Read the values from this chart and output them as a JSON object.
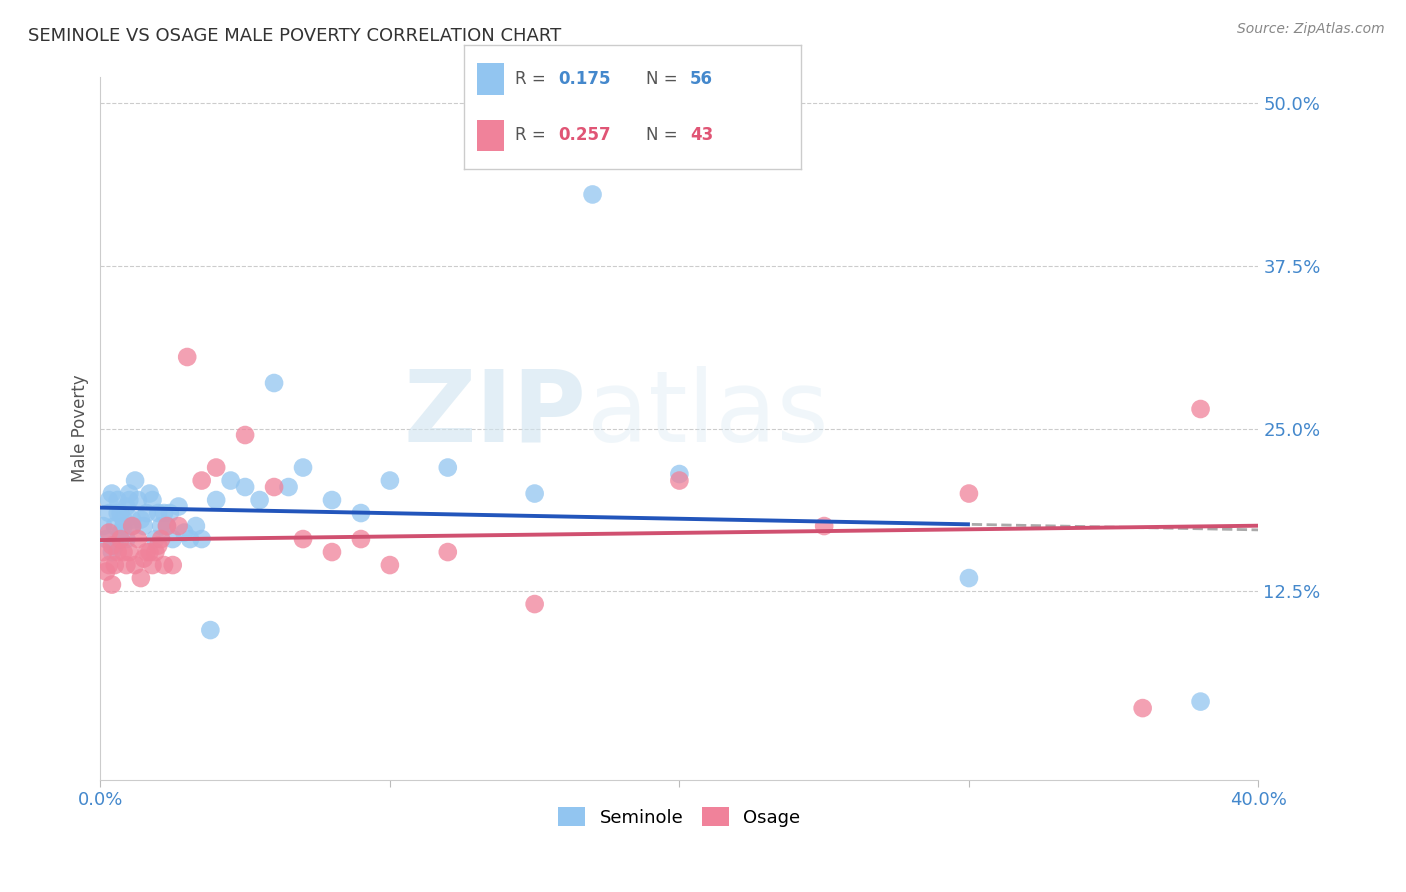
{
  "title": "SEMINOLE VS OSAGE MALE POVERTY CORRELATION CHART",
  "source": "Source: ZipAtlas.com",
  "ylabel": "Male Poverty",
  "xlim": [
    0.0,
    0.4
  ],
  "ylim": [
    -0.02,
    0.52
  ],
  "ytick_positions": [
    0.125,
    0.25,
    0.375,
    0.5
  ],
  "ytick_labels": [
    "12.5%",
    "25.0%",
    "37.5%",
    "50.0%"
  ],
  "xtick_positions": [
    0.0,
    0.1,
    0.2,
    0.3,
    0.4
  ],
  "xtick_labels_show": [
    "0.0%",
    "",
    "",
    "",
    "40.0%"
  ],
  "seminole_color": "#92c5f0",
  "osage_color": "#f0829a",
  "trend_blue": "#2255bb",
  "trend_pink": "#d05070",
  "R_seminole": 0.175,
  "N_seminole": 56,
  "R_osage": 0.257,
  "N_osage": 43,
  "seminole_x": [
    0.001,
    0.002,
    0.003,
    0.003,
    0.004,
    0.004,
    0.005,
    0.005,
    0.006,
    0.006,
    0.007,
    0.007,
    0.008,
    0.008,
    0.009,
    0.009,
    0.01,
    0.01,
    0.011,
    0.011,
    0.012,
    0.013,
    0.014,
    0.015,
    0.016,
    0.017,
    0.018,
    0.019,
    0.02,
    0.021,
    0.022,
    0.023,
    0.024,
    0.025,
    0.027,
    0.029,
    0.031,
    0.033,
    0.035,
    0.038,
    0.04,
    0.045,
    0.05,
    0.055,
    0.06,
    0.065,
    0.07,
    0.08,
    0.09,
    0.1,
    0.12,
    0.15,
    0.17,
    0.2,
    0.3,
    0.38
  ],
  "seminole_y": [
    0.175,
    0.165,
    0.185,
    0.195,
    0.155,
    0.2,
    0.16,
    0.175,
    0.185,
    0.195,
    0.17,
    0.185,
    0.175,
    0.18,
    0.165,
    0.19,
    0.195,
    0.2,
    0.175,
    0.18,
    0.21,
    0.195,
    0.18,
    0.175,
    0.185,
    0.2,
    0.195,
    0.165,
    0.185,
    0.175,
    0.185,
    0.175,
    0.185,
    0.165,
    0.19,
    0.17,
    0.165,
    0.175,
    0.165,
    0.095,
    0.195,
    0.21,
    0.205,
    0.195,
    0.285,
    0.205,
    0.22,
    0.195,
    0.185,
    0.21,
    0.22,
    0.2,
    0.43,
    0.215,
    0.135,
    0.04
  ],
  "osage_x": [
    0.001,
    0.002,
    0.003,
    0.003,
    0.004,
    0.004,
    0.005,
    0.006,
    0.007,
    0.008,
    0.009,
    0.01,
    0.011,
    0.012,
    0.013,
    0.014,
    0.015,
    0.016,
    0.017,
    0.018,
    0.019,
    0.02,
    0.021,
    0.022,
    0.023,
    0.025,
    0.027,
    0.03,
    0.035,
    0.04,
    0.05,
    0.06,
    0.07,
    0.08,
    0.09,
    0.1,
    0.12,
    0.15,
    0.2,
    0.25,
    0.3,
    0.36,
    0.38
  ],
  "osage_y": [
    0.155,
    0.14,
    0.17,
    0.145,
    0.16,
    0.13,
    0.145,
    0.155,
    0.165,
    0.155,
    0.145,
    0.155,
    0.175,
    0.145,
    0.165,
    0.135,
    0.15,
    0.155,
    0.155,
    0.145,
    0.155,
    0.16,
    0.165,
    0.145,
    0.175,
    0.145,
    0.175,
    0.305,
    0.21,
    0.22,
    0.245,
    0.205,
    0.165,
    0.155,
    0.165,
    0.145,
    0.155,
    0.115,
    0.21,
    0.175,
    0.2,
    0.035,
    0.265
  ],
  "background_color": "#ffffff",
  "grid_color": "#cccccc",
  "watermark_color": "#d0e4f0",
  "trend_dashed_start": 0.3,
  "legend_seminole_color": "#4488cc",
  "legend_osage_color": "#e05575"
}
